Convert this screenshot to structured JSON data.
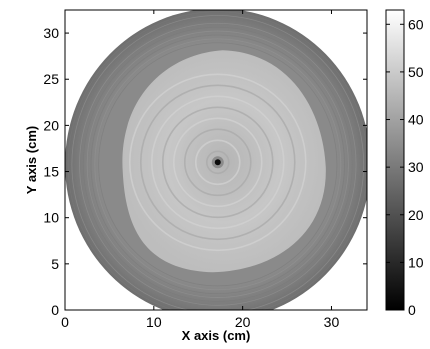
{
  "chart_data": {
    "type": "heatmap",
    "title": "",
    "xlabel": "X axis (cm)",
    "ylabel": "Y axis (cm)",
    "xlim": [
      0,
      34
    ],
    "ylim": [
      0,
      32.5
    ],
    "x_ticks": [
      0,
      10,
      20,
      30
    ],
    "y_ticks": [
      0,
      5,
      10,
      15,
      20,
      25,
      30
    ],
    "colorbar": {
      "colormap": "gray",
      "range": [
        0,
        63
      ],
      "ticks": [
        0,
        10,
        20,
        30,
        40,
        50,
        60
      ]
    },
    "disk": {
      "center": [
        17.2,
        16
      ],
      "radius": 17.2,
      "outer_ring_value": 28,
      "inner_region_value": 48,
      "center_value": 3
    },
    "grid": false,
    "legend": "none"
  }
}
